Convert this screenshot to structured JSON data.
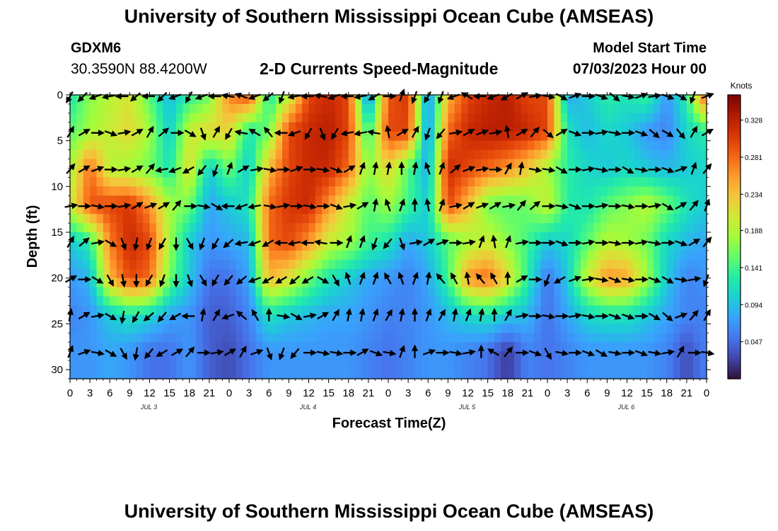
{
  "header": {
    "title": "University of Southern Mississippi Ocean Cube (AMSEAS)",
    "station_id": "GDXM6",
    "station_coords": "30.3590N  88.4200W",
    "subtitle": "2-D Currents Speed-Magnitude",
    "start_label": "Model Start Time",
    "start_value": "07/03/2023 Hour 00"
  },
  "footer": {
    "title": "University of Southern Mississippi Ocean Cube (AMSEAS)"
  },
  "chart_data": {
    "type": "heatmap",
    "xlabel": "Forecast Time(Z)",
    "ylabel": "Depth (ft)",
    "x_range_hours": [
      0,
      96
    ],
    "y_range_ft": [
      0,
      31
    ],
    "y_inverted": true,
    "x_tick_labels": [
      "0",
      "3",
      "6",
      "9",
      "12",
      "15",
      "18",
      "21",
      "0",
      "3",
      "6",
      "9",
      "12",
      "15",
      "18",
      "21",
      "0",
      "3",
      "6",
      "9",
      "12",
      "15",
      "18",
      "21",
      "0",
      "3",
      "6",
      "9",
      "12",
      "15",
      "18",
      "21",
      "0"
    ],
    "y_tick_labels": [
      "0",
      "5",
      "10",
      "15",
      "20",
      "25",
      "30"
    ],
    "day_labels": [
      "JUL 3",
      "JUL 4",
      "JUL 5",
      "JUL 6"
    ],
    "colorbar": {
      "title": "Knots",
      "ticks": [
        "0.328",
        "0.281",
        "0.234",
        "0.188",
        "0.141",
        "0.094",
        "0.047"
      ],
      "range": [
        0.0,
        0.36
      ],
      "colors": [
        "#30123b",
        "#4145ab",
        "#4675ed",
        "#39a2fc",
        "#1bcfd4",
        "#24eca6",
        "#61fc6c",
        "#a4fc3b",
        "#d1e834",
        "#f3c63a",
        "#fe9b2d",
        "#f36315",
        "#d93806",
        "#b11901",
        "#7a0402"
      ]
    },
    "depths_ft": [
      0,
      4,
      8,
      12,
      16,
      20,
      24,
      28
    ],
    "times_hours": [
      0,
      3,
      6,
      9,
      12,
      15,
      18,
      21,
      24,
      27,
      30,
      33,
      36,
      39,
      42,
      45,
      48,
      51,
      54,
      57,
      60,
      63,
      66,
      69,
      72,
      75,
      78,
      81,
      84,
      87,
      90,
      93,
      96
    ],
    "speed_knots": [
      [
        0.12,
        0.17,
        0.19,
        0.21,
        0.15,
        0.09,
        0.13,
        0.16,
        0.27,
        0.3,
        0.12,
        0.19,
        0.3,
        0.32,
        0.3,
        0.05,
        0.29,
        0.31,
        0.06,
        0.24,
        0.3,
        0.32,
        0.33,
        0.3,
        0.3,
        0.08,
        0.1,
        0.13,
        0.12,
        0.14,
        0.07,
        0.13,
        0.3
      ],
      [
        0.15,
        0.18,
        0.2,
        0.22,
        0.18,
        0.1,
        0.2,
        0.22,
        0.22,
        0.12,
        0.16,
        0.3,
        0.32,
        0.33,
        0.3,
        0.13,
        0.3,
        0.3,
        0.06,
        0.28,
        0.32,
        0.33,
        0.33,
        0.32,
        0.3,
        0.12,
        0.09,
        0.11,
        0.1,
        0.07,
        0.06,
        0.11,
        0.13
      ],
      [
        0.18,
        0.28,
        0.19,
        0.18,
        0.16,
        0.12,
        0.22,
        0.1,
        0.16,
        0.1,
        0.24,
        0.3,
        0.32,
        0.32,
        0.28,
        0.17,
        0.22,
        0.15,
        0.08,
        0.32,
        0.3,
        0.28,
        0.26,
        0.23,
        0.18,
        0.13,
        0.11,
        0.1,
        0.11,
        0.1,
        0.09,
        0.1,
        0.11
      ],
      [
        0.2,
        0.29,
        0.3,
        0.31,
        0.26,
        0.18,
        0.16,
        0.08,
        0.1,
        0.12,
        0.28,
        0.31,
        0.32,
        0.26,
        0.2,
        0.15,
        0.18,
        0.14,
        0.1,
        0.3,
        0.24,
        0.16,
        0.15,
        0.16,
        0.2,
        0.13,
        0.12,
        0.15,
        0.17,
        0.19,
        0.16,
        0.12,
        0.1
      ],
      [
        0.1,
        0.13,
        0.27,
        0.32,
        0.3,
        0.18,
        0.1,
        0.07,
        0.08,
        0.09,
        0.28,
        0.3,
        0.26,
        0.2,
        0.18,
        0.14,
        0.12,
        0.08,
        0.1,
        0.15,
        0.18,
        0.2,
        0.17,
        0.14,
        0.1,
        0.11,
        0.15,
        0.19,
        0.18,
        0.16,
        0.11,
        0.09,
        0.08
      ],
      [
        0.07,
        0.09,
        0.24,
        0.3,
        0.28,
        0.16,
        0.1,
        0.05,
        0.05,
        0.08,
        0.24,
        0.21,
        0.16,
        0.12,
        0.1,
        0.08,
        0.07,
        0.06,
        0.08,
        0.14,
        0.26,
        0.28,
        0.22,
        0.13,
        0.05,
        0.1,
        0.2,
        0.26,
        0.25,
        0.18,
        0.1,
        0.06,
        0.07
      ],
      [
        0.06,
        0.07,
        0.1,
        0.12,
        0.11,
        0.08,
        0.07,
        0.04,
        0.04,
        0.06,
        0.12,
        0.1,
        0.09,
        0.08,
        0.08,
        0.07,
        0.06,
        0.06,
        0.07,
        0.09,
        0.11,
        0.12,
        0.1,
        0.09,
        0.05,
        0.08,
        0.11,
        0.12,
        0.12,
        0.1,
        0.08,
        0.06,
        0.06
      ],
      [
        0.07,
        0.07,
        0.08,
        0.07,
        0.05,
        0.05,
        0.07,
        0.04,
        0.03,
        0.05,
        0.07,
        0.07,
        0.07,
        0.07,
        0.07,
        0.06,
        0.05,
        0.06,
        0.07,
        0.07,
        0.06,
        0.05,
        0.02,
        0.06,
        0.05,
        0.06,
        0.07,
        0.07,
        0.07,
        0.07,
        0.06,
        0.03,
        0.06
      ]
    ],
    "arrow_depths_ft": [
      0,
      4,
      8,
      12,
      16,
      20,
      24,
      28
    ],
    "arrow_times_hours": [
      0,
      2,
      4,
      6,
      8,
      10,
      12,
      14,
      16,
      18,
      20,
      22,
      24,
      26,
      28,
      30,
      32,
      34,
      36,
      38,
      40,
      42,
      44,
      46,
      48,
      50,
      52,
      54,
      56,
      58,
      60,
      62,
      64,
      66,
      68,
      70,
      72,
      74,
      76,
      78,
      80,
      82,
      84,
      86,
      88,
      90,
      92,
      94,
      96
    ],
    "arrow_directions_deg": [
      [
        210,
        225,
        250,
        260,
        270,
        230,
        270,
        225,
        250,
        210,
        250,
        270,
        280,
        290,
        250,
        230,
        200,
        260,
        270,
        280,
        250,
        270,
        260,
        240,
        90,
        20,
        200,
        210,
        200,
        250,
        300,
        270,
        250,
        240,
        60,
        80,
        100,
        120,
        70,
        90,
        110,
        130,
        100,
        70,
        80,
        110,
        120,
        200,
        70
      ],
      [
        30,
        60,
        90,
        110,
        80,
        60,
        30,
        50,
        90,
        120,
        160,
        30,
        210,
        280,
        300,
        320,
        270,
        250,
        210,
        160,
        210,
        260,
        260,
        280,
        350,
        60,
        30,
        200,
        220,
        80,
        60,
        70,
        80,
        350,
        60,
        40,
        130,
        60,
        110,
        90,
        80,
        100,
        90,
        110,
        130,
        120,
        140,
        30,
        60
      ],
      [
        40,
        60,
        70,
        90,
        80,
        60,
        40,
        260,
        250,
        240,
        220,
        200,
        20,
        60,
        80,
        100,
        90,
        70,
        90,
        100,
        110,
        60,
        20,
        10,
        10,
        0,
        10,
        340,
        20,
        50,
        70,
        80,
        90,
        30,
        10,
        100,
        100,
        120,
        90,
        80,
        100,
        90,
        120,
        100,
        90,
        110,
        70,
        20,
        40
      ],
      [
        80,
        90,
        100,
        90,
        80,
        60,
        70,
        60,
        40,
        90,
        100,
        120,
        270,
        250,
        260,
        100,
        80,
        90,
        100,
        90,
        110,
        80,
        60,
        10,
        340,
        20,
        0,
        350,
        20,
        80,
        60,
        70,
        60,
        80,
        40,
        50,
        90,
        100,
        110,
        90,
        80,
        90,
        100,
        90,
        80,
        120,
        60,
        40,
        20
      ],
      [
        30,
        50,
        80,
        120,
        160,
        190,
        200,
        210,
        180,
        150,
        200,
        210,
        230,
        260,
        250,
        240,
        270,
        260,
        270,
        280,
        90,
        20,
        20,
        200,
        220,
        160,
        80,
        60,
        70,
        90,
        80,
        20,
        350,
        20,
        80,
        90,
        90,
        110,
        90,
        80,
        90,
        100,
        90,
        80,
        100,
        90,
        110,
        60,
        40
      ],
      [
        60,
        90,
        120,
        150,
        170,
        180,
        210,
        200,
        180,
        160,
        150,
        210,
        220,
        230,
        250,
        240,
        240,
        230,
        240,
        120,
        150,
        340,
        20,
        20,
        330,
        340,
        20,
        10,
        320,
        330,
        350,
        320,
        330,
        0,
        60,
        90,
        200,
        240,
        70,
        80,
        100,
        110,
        100,
        90,
        110,
        120,
        100,
        80,
        200
      ],
      [
        10,
        60,
        80,
        120,
        190,
        210,
        230,
        220,
        240,
        270,
        10,
        30,
        250,
        310,
        330,
        0,
        100,
        120,
        80,
        60,
        30,
        10,
        10,
        20,
        30,
        10,
        0,
        20,
        30,
        10,
        20,
        10,
        0,
        30,
        80,
        90,
        100,
        90,
        80,
        100,
        90,
        110,
        110,
        90,
        120,
        130,
        70,
        40,
        30
      ],
      [
        20,
        70,
        100,
        120,
        150,
        190,
        220,
        240,
        60,
        40,
        90,
        80,
        60,
        30,
        70,
        160,
        200,
        220,
        90,
        100,
        100,
        90,
        60,
        110,
        100,
        20,
        0,
        70,
        90,
        100,
        80,
        0,
        300,
        40,
        90,
        110,
        150,
        100,
        90,
        110,
        120,
        100,
        90,
        110,
        100,
        80,
        30,
        90,
        100
      ]
    ]
  }
}
